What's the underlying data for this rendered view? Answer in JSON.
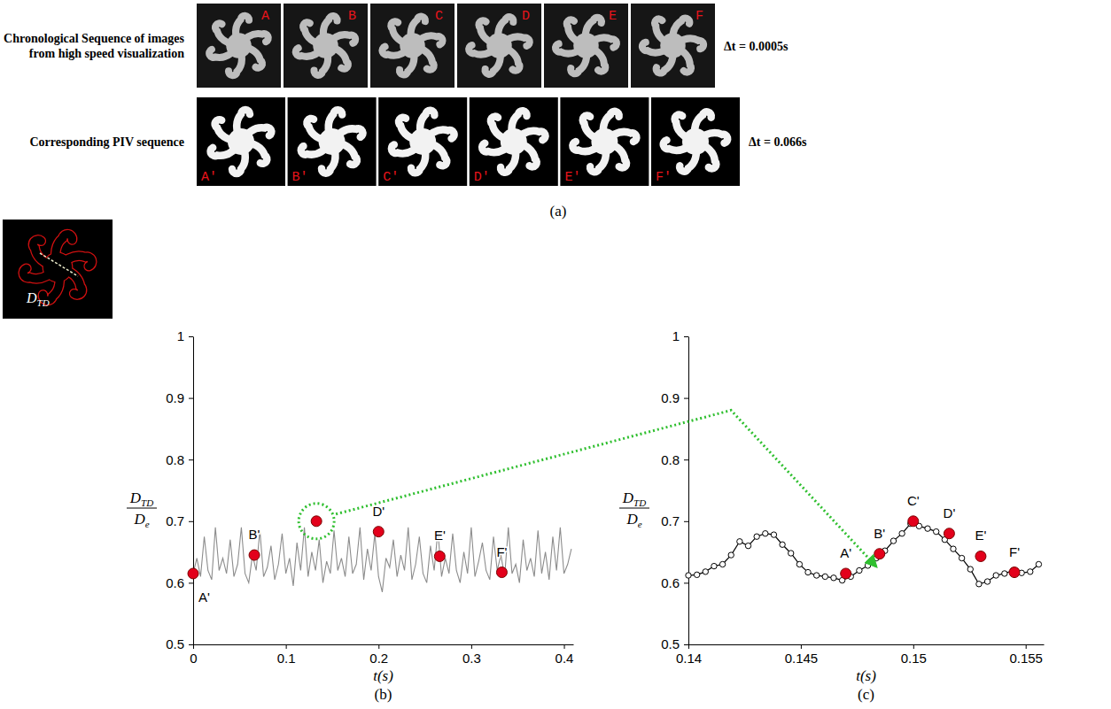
{
  "figure": {
    "panel_a": {
      "label": "(a)",
      "rows": [
        {
          "title": "Chronological Sequence of images from high speed visualization",
          "frames": [
            "A",
            "B",
            "C",
            "D",
            "E",
            "F"
          ],
          "interval": "Δt = 0.0005s"
        },
        {
          "title": "Corresponding PIV sequence",
          "frames": [
            "A'",
            "B'",
            "C'",
            "D'",
            "E'",
            "F'"
          ],
          "interval": "Δt = 0.066s"
        }
      ]
    },
    "inset": {
      "symbol": "D",
      "subscript": "TD"
    }
  },
  "chart_data": [
    {
      "type": "line",
      "caption": "(b)",
      "xlabel": "t(s)",
      "ylabel": {
        "numerator": {
          "symbol": "D",
          "subscript": "TD"
        },
        "denominator": {
          "symbol": "D",
          "subscript": "e"
        }
      },
      "xlim": [
        0,
        0.41
      ],
      "xticks": [
        0,
        0.1,
        0.2,
        0.3,
        0.4
      ],
      "ylim": [
        0.5,
        1
      ],
      "yticks": [
        0.5,
        0.6,
        0.7,
        0.8,
        0.9,
        1
      ],
      "grid": false,
      "series": [
        {
          "type": "line",
          "color": "#8c8c8c",
          "x": [
            0,
            0.004,
            0.008,
            0.012,
            0.016,
            0.02,
            0.024,
            0.028,
            0.032,
            0.036,
            0.04,
            0.044,
            0.048,
            0.052,
            0.056,
            0.06,
            0.064,
            0.068,
            0.072,
            0.076,
            0.08,
            0.084,
            0.088,
            0.092,
            0.096,
            0.1,
            0.104,
            0.108,
            0.112,
            0.116,
            0.12,
            0.124,
            0.128,
            0.132,
            0.136,
            0.14,
            0.144,
            0.148,
            0.152,
            0.156,
            0.16,
            0.164,
            0.168,
            0.172,
            0.176,
            0.18,
            0.184,
            0.188,
            0.192,
            0.196,
            0.2,
            0.204,
            0.208,
            0.212,
            0.216,
            0.22,
            0.224,
            0.228,
            0.232,
            0.236,
            0.24,
            0.244,
            0.248,
            0.252,
            0.256,
            0.26,
            0.264,
            0.268,
            0.272,
            0.276,
            0.28,
            0.284,
            0.288,
            0.292,
            0.296,
            0.3,
            0.304,
            0.308,
            0.312,
            0.316,
            0.32,
            0.324,
            0.328,
            0.332,
            0.336,
            0.34,
            0.344,
            0.348,
            0.352,
            0.356,
            0.36,
            0.364,
            0.368,
            0.372,
            0.376,
            0.38,
            0.384,
            0.388,
            0.392,
            0.396,
            0.4,
            0.404,
            0.408
          ],
          "values": [
            0.615,
            0.64,
            0.61,
            0.675,
            0.62,
            0.605,
            0.69,
            0.62,
            0.64,
            0.615,
            0.67,
            0.61,
            0.63,
            0.69,
            0.615,
            0.6,
            0.645,
            0.62,
            0.685,
            0.61,
            0.625,
            0.66,
            0.605,
            0.63,
            0.68,
            0.615,
            0.64,
            0.595,
            0.665,
            0.62,
            0.69,
            0.61,
            0.65,
            0.62,
            0.67,
            0.6,
            0.635,
            0.615,
            0.685,
            0.62,
            0.64,
            0.61,
            0.675,
            0.615,
            0.63,
            0.69,
            0.605,
            0.655,
            0.62,
            0.68,
            0.61,
            0.585,
            0.64,
            0.625,
            0.67,
            0.61,
            0.645,
            0.62,
            0.69,
            0.605,
            0.63,
            0.675,
            0.615,
            0.6,
            0.66,
            0.62,
            0.685,
            0.61,
            0.64,
            0.615,
            0.68,
            0.62,
            0.6,
            0.65,
            0.615,
            0.69,
            0.61,
            0.635,
            0.665,
            0.62,
            0.605,
            0.675,
            0.62,
            0.645,
            0.61,
            0.69,
            0.615,
            0.63,
            0.6,
            0.67,
            0.62,
            0.64,
            0.61,
            0.685,
            0.615,
            0.65,
            0.605,
            0.675,
            0.62,
            0.69,
            0.615,
            0.63,
            0.655
          ]
        },
        {
          "type": "scatter",
          "color": "#e3001b",
          "marker": "circle",
          "x": [
            0,
            0.066,
            0.133,
            0.2,
            0.266,
            0.333
          ],
          "values": [
            0.615,
            0.645,
            0.7,
            0.683,
            0.643,
            0.617
          ],
          "point_labels": [
            "A'",
            "B'",
            null,
            "D'",
            "E'",
            "F'"
          ]
        }
      ]
    },
    {
      "type": "line",
      "caption": "(c)",
      "xlabel": "t(s)",
      "ylabel": {
        "numerator": {
          "symbol": "D",
          "subscript": "TD"
        },
        "denominator": {
          "symbol": "D",
          "subscript": "e"
        }
      },
      "xlim": [
        0.14,
        0.1558
      ],
      "xticks": [
        0.14,
        0.145,
        0.15,
        0.155
      ],
      "ylim": [
        0.5,
        1
      ],
      "yticks": [
        0.5,
        0.6,
        0.7,
        0.8,
        0.9,
        1
      ],
      "grid": false,
      "series": [
        {
          "type": "line",
          "color": "#000000",
          "marker": "open_circle",
          "x": [
            0.14,
            0.14038,
            0.14076,
            0.14114,
            0.14152,
            0.1419,
            0.14228,
            0.14266,
            0.14304,
            0.14342,
            0.1438,
            0.14418,
            0.14456,
            0.14494,
            0.14532,
            0.1457,
            0.14608,
            0.14646,
            0.14684,
            0.14722,
            0.1476,
            0.14798,
            0.14836,
            0.14874,
            0.14912,
            0.1495,
            0.14988,
            0.15026,
            0.15064,
            0.15102,
            0.1514,
            0.15178,
            0.15216,
            0.15254,
            0.15292,
            0.1533,
            0.15368,
            0.15406,
            0.15444,
            0.15482,
            0.1552,
            0.15558
          ],
          "values": [
            0.612,
            0.613,
            0.618,
            0.627,
            0.63,
            0.645,
            0.667,
            0.66,
            0.675,
            0.68,
            0.678,
            0.662,
            0.648,
            0.63,
            0.617,
            0.612,
            0.61,
            0.608,
            0.604,
            0.61,
            0.62,
            0.628,
            0.64,
            0.652,
            0.668,
            0.68,
            0.696,
            0.692,
            0.688,
            0.683,
            0.67,
            0.655,
            0.64,
            0.622,
            0.598,
            0.602,
            0.612,
            0.615,
            0.62,
            0.616,
            0.618,
            0.63
          ]
        },
        {
          "type": "scatter",
          "color": "#e3001b",
          "marker": "circle",
          "x": [
            0.147,
            0.1485,
            0.15,
            0.1516,
            0.153,
            0.1545
          ],
          "values": [
            0.615,
            0.647,
            0.7,
            0.68,
            0.643,
            0.617
          ],
          "point_labels": [
            "A'",
            "B'",
            "C'",
            "D'",
            "E'",
            "F'"
          ]
        }
      ]
    }
  ]
}
